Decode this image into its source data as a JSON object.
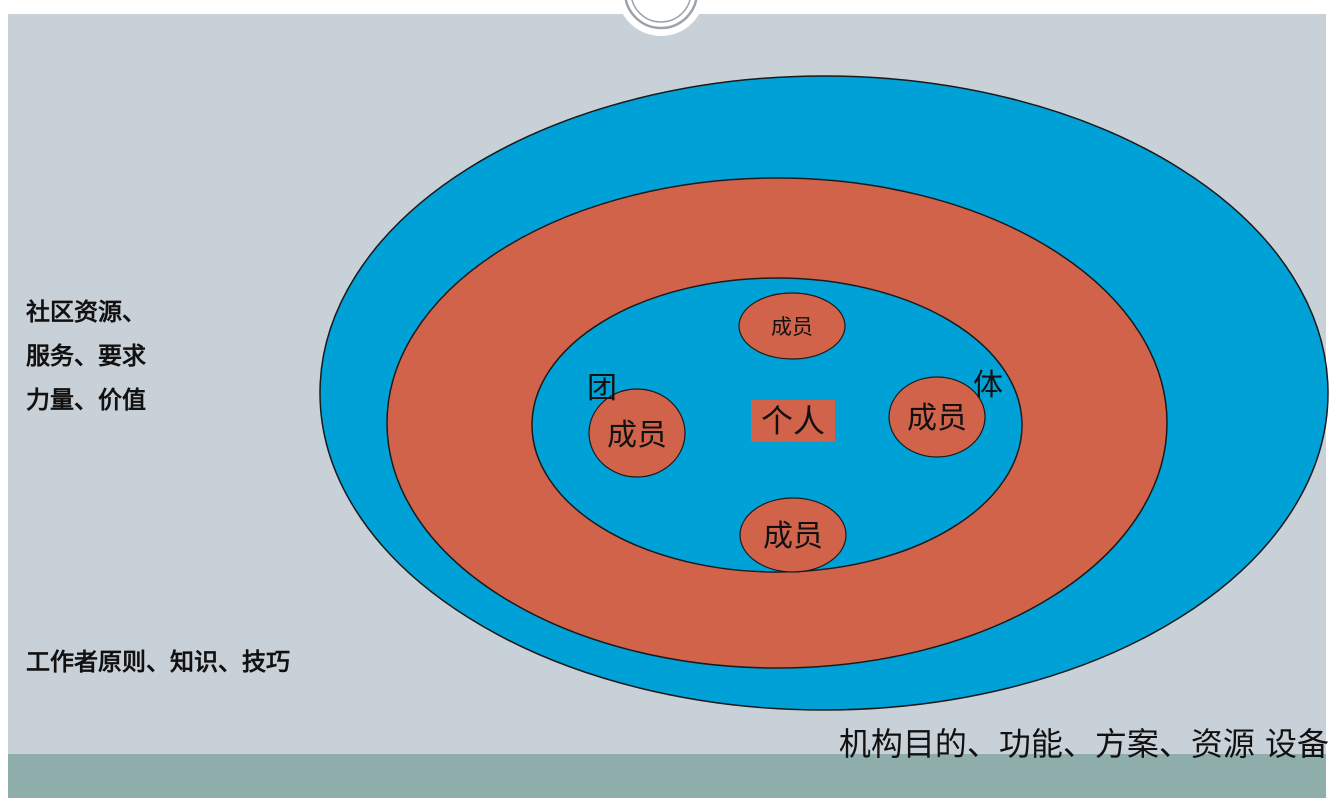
{
  "community": {
    "line1": "社区资源、",
    "line2": "服务、要求",
    "line3": "力量、价值"
  },
  "worker": {
    "label": "工作者原则、知识、技巧"
  },
  "agency": {
    "label": "机构目的、功能、方案、资源 设备"
  },
  "group": {
    "char_left": "团",
    "char_right": "体"
  },
  "center": {
    "label": "个人"
  },
  "members": {
    "top": "成员",
    "left": "成员",
    "right": "成员",
    "bottom": "成员"
  },
  "colors": {
    "panel": "#c9d1d8",
    "footer": "#8fadab",
    "blue": "#00a1d6",
    "red": "#d2634b"
  }
}
